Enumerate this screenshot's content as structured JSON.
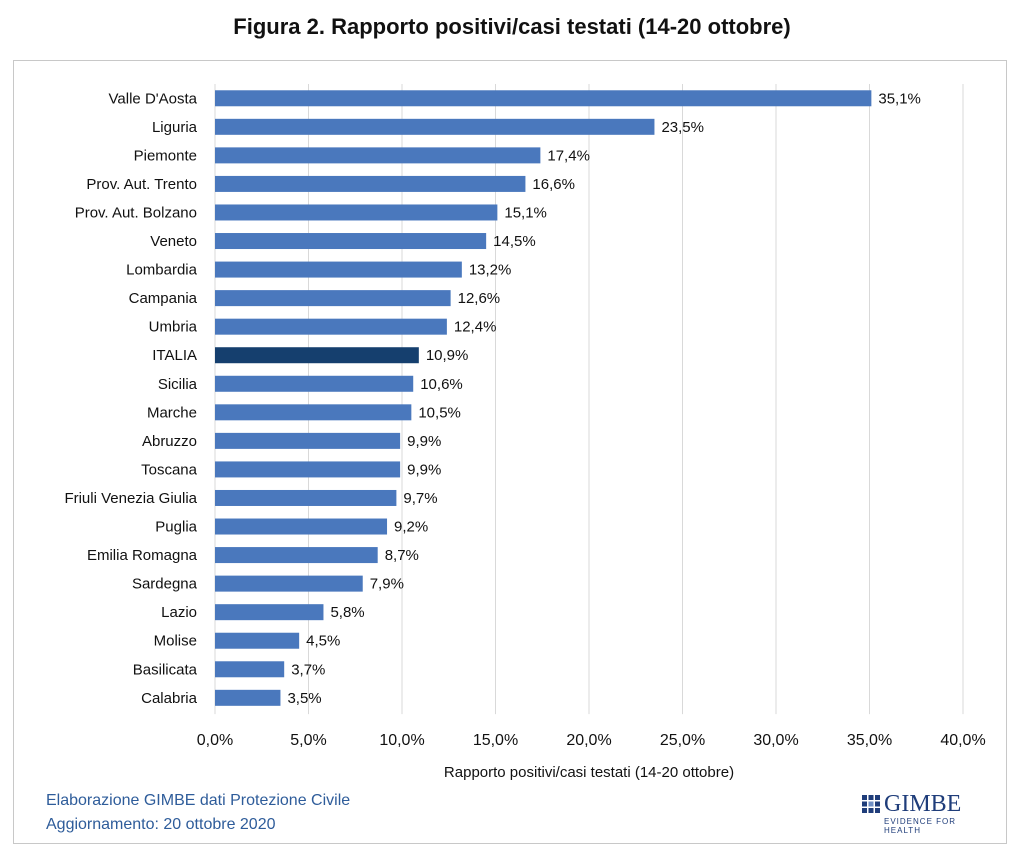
{
  "chart_data": {
    "type": "bar",
    "orientation": "horizontal",
    "title": "Figura 2. Rapporto positivi/casi testati (14-20 ottobre)",
    "xlabel": "Rapporto positivi/casi testati (14-20 ottobre)",
    "ylabel": "",
    "xlim": [
      0,
      40
    ],
    "xticks": [
      0,
      5,
      10,
      15,
      20,
      25,
      30,
      35,
      40
    ],
    "xtick_labels": [
      "0,0%",
      "5,0%",
      "10,0%",
      "15,0%",
      "20,0%",
      "25,0%",
      "30,0%",
      "35,0%",
      "40,0%"
    ],
    "grid": "vertical",
    "legend": "none",
    "categories": [
      "Valle D'Aosta",
      "Liguria",
      "Piemonte",
      "Prov. Aut. Trento",
      "Prov. Aut. Bolzano",
      "Veneto",
      "Lombardia",
      "Campania",
      "Umbria",
      "ITALIA",
      "Sicilia",
      "Marche",
      "Abruzzo",
      "Toscana",
      "Friuli Venezia Giulia",
      "Puglia",
      "Emilia Romagna",
      "Sardegna",
      "Lazio",
      "Molise",
      "Basilicata",
      "Calabria"
    ],
    "values": [
      35.1,
      23.5,
      17.4,
      16.6,
      15.1,
      14.5,
      13.2,
      12.6,
      12.4,
      10.9,
      10.6,
      10.5,
      9.9,
      9.9,
      9.7,
      9.2,
      8.7,
      7.9,
      5.8,
      4.5,
      3.7,
      3.5
    ],
    "value_labels": [
      "35,1%",
      "23,5%",
      "17,4%",
      "16,6%",
      "15,1%",
      "14,5%",
      "13,2%",
      "12,6%",
      "12,4%",
      "10,9%",
      "10,6%",
      "10,5%",
      "9,9%",
      "9,9%",
      "9,7%",
      "9,2%",
      "8,7%",
      "7,9%",
      "5,8%",
      "4,5%",
      "3,7%",
      "3,5%"
    ],
    "highlight": "ITALIA",
    "colors": {
      "bar": "#4a78bd",
      "highlight": "#153f6e",
      "grid": "#d9d9d9"
    }
  },
  "footer": {
    "source": "Elaborazione GIMBE dati Protezione Civile",
    "updated": "Aggiornamento: 20 ottobre 2020"
  },
  "logo": {
    "name": "GIMBE",
    "tagline": "EVIDENCE FOR HEALTH"
  }
}
